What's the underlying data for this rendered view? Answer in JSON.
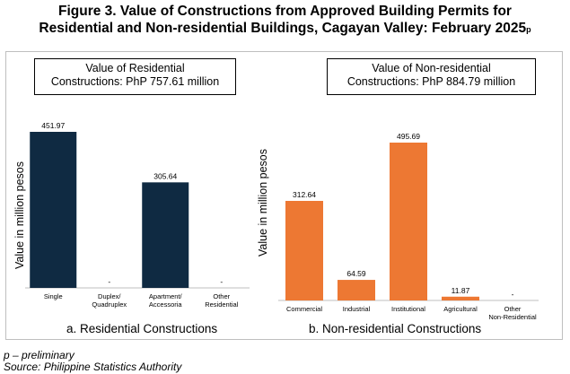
{
  "title_line1": "Figure 3. Value of Constructions from Approved Building Permits for",
  "title_line2": "Residential and Non-residential Buildings, Cagayan Valley: February 2025",
  "title_superscript": "p",
  "note_preliminary": "p – preliminary",
  "note_source": "Source: Philippine Statistics Authority",
  "colors": {
    "residential": "#0f2a42",
    "nonresidential": "#ed7833"
  },
  "chart_data": [
    {
      "type": "bar",
      "title": "Value of Residential Constructions: PhP 757.61 million",
      "title_line1": "Value of Residential",
      "title_line2": "Constructions: PhP 757.61 million",
      "caption": "a.   Residential Constructions",
      "ylabel": "Value in million pesos",
      "categories": [
        [
          "Single"
        ],
        [
          "Duplex/",
          "Quadruplex"
        ],
        [
          "Apartment/",
          "Accessoria"
        ],
        [
          "Other",
          "Residential"
        ]
      ],
      "values": [
        451.97,
        null,
        305.64,
        null
      ],
      "labels": [
        "451.97",
        "-",
        "305.64",
        "-"
      ],
      "grid": false
    },
    {
      "type": "bar",
      "title": "Value of Non-residential Constructions: PhP 884.79 million",
      "title_line1": "Value of Non-residential",
      "title_line2": "Constructions: PhP 884.79 million",
      "caption": "b.   Non-residential Constructions",
      "ylabel": "Value in million pesos",
      "categories": [
        [
          "Commercial"
        ],
        [
          "Industrial"
        ],
        [
          "Institutional"
        ],
        [
          "Agricultural"
        ],
        [
          "Other",
          "Non-Residential"
        ]
      ],
      "values": [
        312.64,
        64.59,
        495.69,
        11.87,
        null
      ],
      "labels": [
        "312.64",
        "64.59",
        "495.69",
        "11.87",
        "-"
      ],
      "grid": false
    }
  ]
}
